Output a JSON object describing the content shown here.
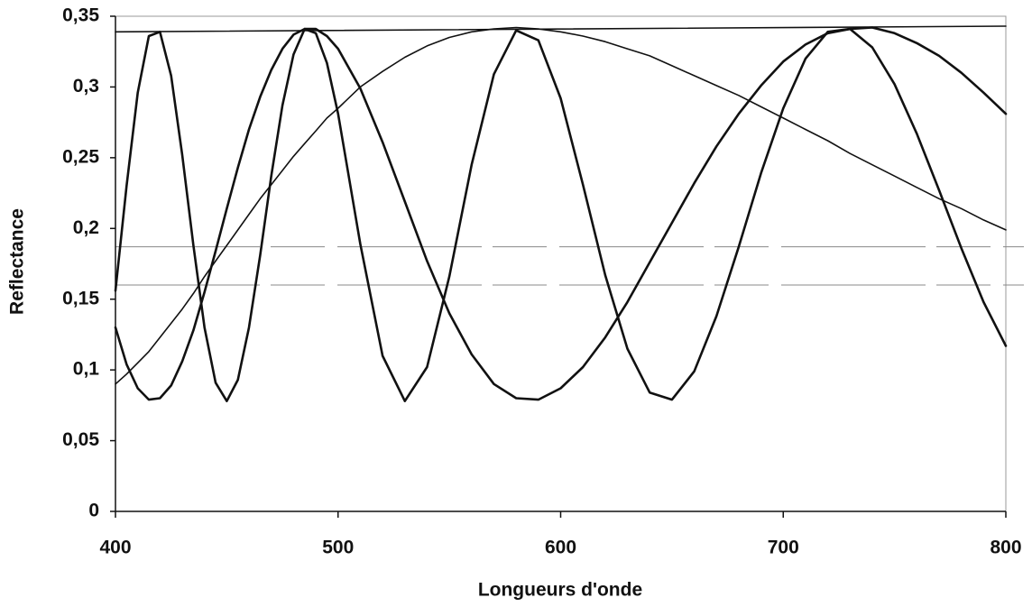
{
  "chart_data": {
    "type": "line",
    "xlabel": "Longueurs d'onde",
    "ylabel": "Reflectance",
    "x": [
      400,
      405,
      410,
      415,
      420,
      425,
      430,
      435,
      440,
      445,
      450,
      455,
      460,
      465,
      470,
      475,
      480,
      485,
      490,
      495,
      500,
      510,
      520,
      530,
      540,
      550,
      560,
      570,
      580,
      590,
      600,
      610,
      620,
      630,
      640,
      650,
      660,
      670,
      680,
      690,
      700,
      710,
      720,
      730,
      740,
      750,
      760,
      770,
      780,
      790,
      800
    ],
    "series": [
      {
        "color": "#111111",
        "width": 1.6,
        "values": [
          0.09,
          0.097,
          0.105,
          0.113,
          0.123,
          0.133,
          0.143,
          0.154,
          0.166,
          0.177,
          0.188,
          0.199,
          0.21,
          0.221,
          0.231,
          0.241,
          0.251,
          0.26,
          0.269,
          0.278,
          0.285,
          0.3,
          0.311,
          0.321,
          0.329,
          0.335,
          0.339,
          0.341,
          0.342,
          0.341,
          0.339,
          0.336,
          0.332,
          0.327,
          0.322,
          0.315,
          0.308,
          0.301,
          0.294,
          0.286,
          0.278,
          0.27,
          0.262,
          0.253,
          0.245,
          0.237,
          0.229,
          0.221,
          0.214,
          0.206,
          0.199
        ]
      },
      {
        "color": "#111111",
        "width": 2.6,
        "values": [
          0.156,
          0.23,
          0.296,
          0.336,
          0.339,
          0.308,
          0.252,
          0.188,
          0.13,
          0.091,
          0.078,
          0.093,
          0.13,
          0.181,
          0.237,
          0.287,
          0.323,
          0.341,
          0.338,
          0.317,
          0.281,
          0.189,
          0.11,
          0.078,
          0.102,
          0.166,
          0.245,
          0.309,
          0.34,
          0.333,
          0.292,
          0.231,
          0.167,
          0.115,
          0.084,
          0.079,
          0.099,
          0.138,
          0.187,
          0.239,
          0.285,
          0.32,
          0.339,
          0.341,
          0.328,
          0.302,
          0.267,
          0.227,
          0.186,
          0.148,
          0.117
        ]
      },
      {
        "color": "#111111",
        "width": 2.6,
        "values": [
          0.13,
          0.104,
          0.087,
          0.079,
          0.08,
          0.089,
          0.106,
          0.128,
          0.155,
          0.184,
          0.214,
          0.243,
          0.27,
          0.293,
          0.312,
          0.327,
          0.337,
          0.341,
          0.341,
          0.336,
          0.327,
          0.299,
          0.261,
          0.219,
          0.177,
          0.14,
          0.111,
          0.09,
          0.08,
          0.079,
          0.087,
          0.102,
          0.123,
          0.148,
          0.176,
          0.204,
          0.232,
          0.258,
          0.281,
          0.301,
          0.318,
          0.33,
          0.338,
          0.341,
          0.342,
          0.338,
          0.331,
          0.322,
          0.31,
          0.296,
          0.281
        ]
      },
      {
        "color": "#111111",
        "width": 1.6,
        "x": [
          400,
          800
        ],
        "values": [
          0.339,
          0.343
        ]
      }
    ],
    "hlines": [
      0.187,
      0.16
    ],
    "hline_color": "#888888",
    "xlim": [
      400,
      800
    ],
    "xticks": [
      400,
      500,
      600,
      700,
      800
    ],
    "ylim": [
      0,
      0.35
    ],
    "yticks": [
      0,
      {
        "value": 0.05,
        "label": "0,05"
      },
      {
        "value": 0.1,
        "label": "0,1"
      },
      {
        "value": 0.15,
        "label": "0,15"
      },
      {
        "value": 0.2,
        "label": "0,2"
      },
      {
        "value": 0.25,
        "label": "0,25"
      },
      {
        "value": 0.3,
        "label": "0,3"
      },
      {
        "value": 0.35,
        "label": "0,35"
      }
    ]
  }
}
